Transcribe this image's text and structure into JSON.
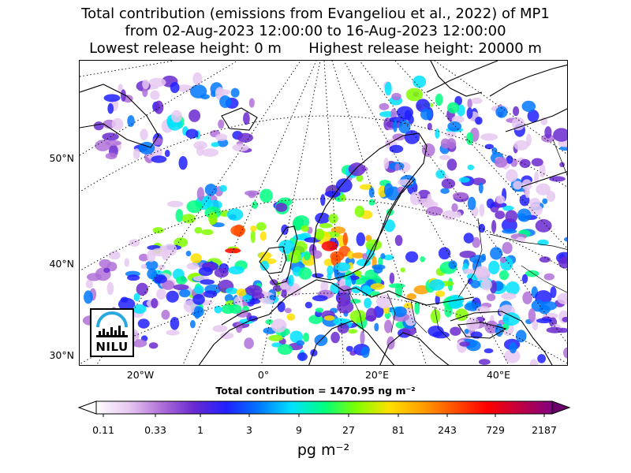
{
  "title": {
    "line1": "Total contribution (emissions from Evangeliou et al., 2022) of MP1",
    "line2": "from 02-Aug-2023 12:00:00 to 16-Aug-2023 12:00:00",
    "line3": "Lowest release height: 0 m      Highest release height: 20000 m"
  },
  "axes": {
    "lat_labels": [
      "50°N",
      "40°N",
      "30°N"
    ],
    "lon_labels": [
      "20°W",
      "0°",
      "20°E",
      "40°E"
    ]
  },
  "total_contribution": "Total contribution = 1470.95 ng m⁻²",
  "colorbar": {
    "ticks": [
      "0.11",
      "0.33",
      "1",
      "3",
      "9",
      "27",
      "81",
      "243",
      "729",
      "2187"
    ],
    "unit": "pg m⁻²",
    "colors": [
      "#ffffff",
      "#e6c8f0",
      "#b070d8",
      "#6a2ad0",
      "#2020ff",
      "#0078ff",
      "#00e0ff",
      "#00ff80",
      "#80ff00",
      "#ffe000",
      "#ffa000",
      "#ff5000",
      "#ff0000",
      "#c00040",
      "#800080"
    ]
  },
  "logo": {
    "text": "NILU"
  }
}
